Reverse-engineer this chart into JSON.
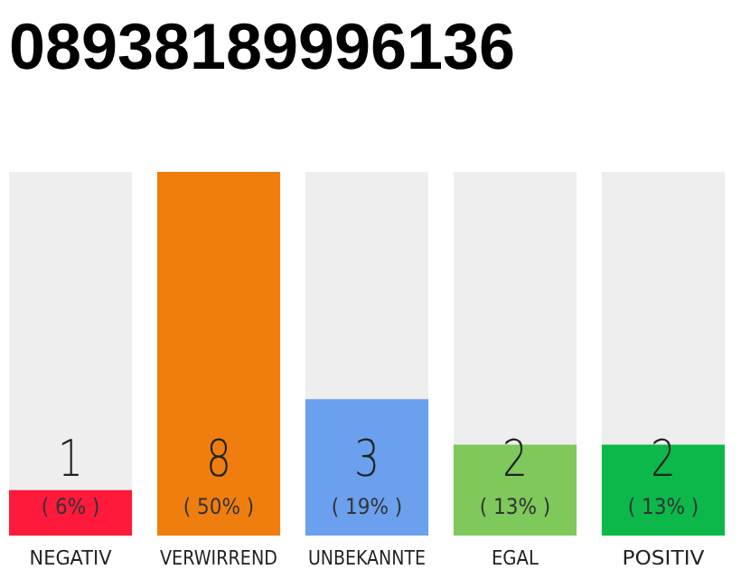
{
  "chart_data": {
    "type": "bar",
    "title": "08938189996136",
    "categories": [
      "NEGATIV",
      "VERWIRREND",
      "UNBEKANNTE",
      "EGAL",
      "POSITIV"
    ],
    "values": [
      1,
      8,
      3,
      2,
      2
    ],
    "colors": [
      "#ff1a3c",
      "#f07e0e",
      "#6aa0ee",
      "#7ec85c",
      "#0db84a"
    ],
    "ylim": [
      0,
      8
    ],
    "tick_labels": "x",
    "data_labels": true,
    "annotations": [
      "( 6% )",
      "( 50% )",
      "( 19% )",
      "( 13% )",
      "( 13% )"
    ]
  }
}
